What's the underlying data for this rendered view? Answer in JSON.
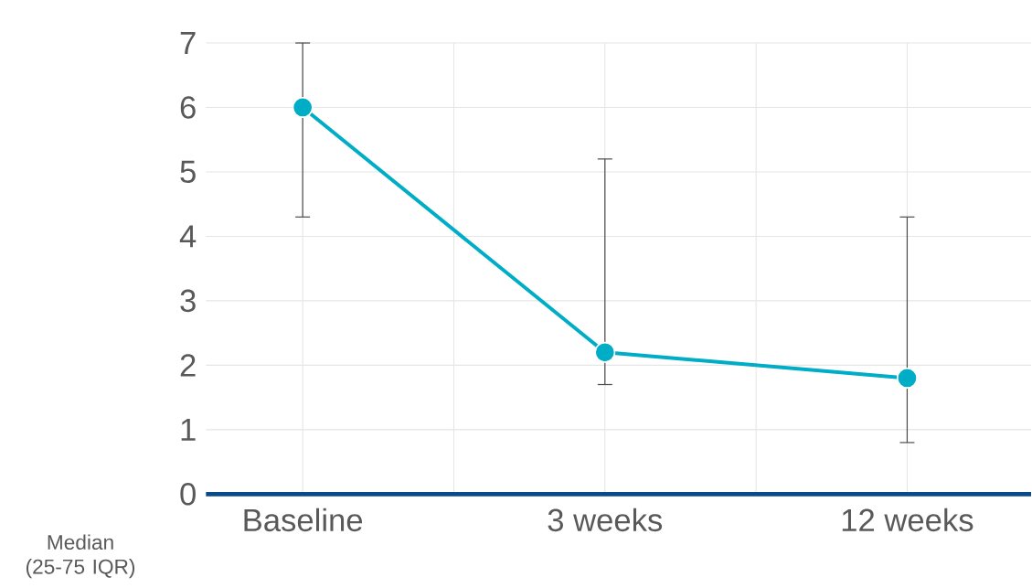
{
  "chart_data": {
    "type": "line",
    "categories": [
      "Baseline",
      "3 weeks",
      "12 weeks"
    ],
    "values": [
      6,
      2.2,
      1.8
    ],
    "errors": [
      [
        4.3,
        7
      ],
      [
        1.7,
        5.2
      ],
      [
        0.8,
        4.3
      ]
    ],
    "color": "#00adc6",
    "marker": "circle",
    "line_style": "solid",
    "grid": true,
    "ylim": [
      0,
      7
    ],
    "yticks": [
      0,
      1,
      2,
      3,
      4,
      5,
      6,
      7
    ],
    "ylabel": "Median (25-75 IQR)"
  }
}
